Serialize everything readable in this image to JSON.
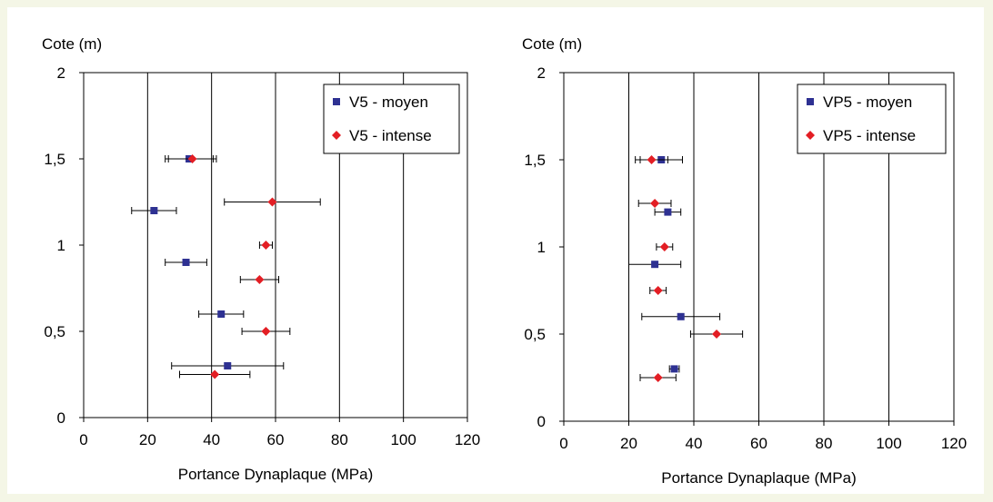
{
  "colors": {
    "moyen": "#2e3192",
    "intense": "#e31e24",
    "background": "#f4f6e6"
  },
  "chart_data": [
    {
      "type": "scatter",
      "title": "",
      "ylabel": "Cote (m)",
      "xlabel": "Portance Dynaplaque (MPa)",
      "xlim": [
        0,
        120
      ],
      "ylim": [
        0,
        2
      ],
      "xticks": [
        "0",
        "20",
        "40",
        "60",
        "80",
        "100",
        "120"
      ],
      "yticks": [
        "0",
        "0,5",
        "1",
        "1,5",
        "2"
      ],
      "grid": "vertical",
      "legend_position": "top-right",
      "series": [
        {
          "name": "V5 - moyen",
          "marker": "square",
          "color": "#2e3192",
          "points": [
            {
              "x": 33,
              "y": 1.5,
              "err": 7.5
            },
            {
              "x": 22,
              "y": 1.2,
              "err": 7
            },
            {
              "x": 32,
              "y": 0.9,
              "err": 6.5
            },
            {
              "x": 43,
              "y": 0.6,
              "err": 7
            },
            {
              "x": 45,
              "y": 0.3,
              "err": 17.5
            }
          ]
        },
        {
          "name": "V5 - intense",
          "marker": "diamond",
          "color": "#e31e24",
          "points": [
            {
              "x": 34,
              "y": 1.5,
              "err": 7.5
            },
            {
              "x": 59,
              "y": 1.25,
              "err": 15
            },
            {
              "x": 57,
              "y": 1.0,
              "err": 2
            },
            {
              "x": 55,
              "y": 0.8,
              "err": 6
            },
            {
              "x": 57,
              "y": 0.5,
              "err": 7.5
            },
            {
              "x": 41,
              "y": 0.25,
              "err": 11
            }
          ]
        }
      ]
    },
    {
      "type": "scatter",
      "title": "",
      "ylabel": "Cote (m)",
      "xlabel": "Portance Dynaplaque (MPa)",
      "xlim": [
        0,
        120
      ],
      "ylim": [
        0,
        2
      ],
      "xticks": [
        "0",
        "20",
        "40",
        "60",
        "80",
        "100",
        "120"
      ],
      "yticks": [
        "0",
        "0,5",
        "1",
        "1,5",
        "2"
      ],
      "grid": "vertical",
      "legend_position": "top-right",
      "series": [
        {
          "name": "VP5 - moyen",
          "marker": "square",
          "color": "#2e3192",
          "points": [
            {
              "x": 30,
              "y": 1.5,
              "err": 6.5
            },
            {
              "x": 32,
              "y": 1.2,
              "err": 4
            },
            {
              "x": 28,
              "y": 0.9,
              "err": 8
            },
            {
              "x": 36,
              "y": 0.6,
              "err": 12
            },
            {
              "x": 34,
              "y": 0.3,
              "err": 1.5
            }
          ]
        },
        {
          "name": "VP5 - intense",
          "marker": "diamond",
          "color": "#e31e24",
          "points": [
            {
              "x": 27,
              "y": 1.5,
              "err": 5
            },
            {
              "x": 28,
              "y": 1.25,
              "err": 5
            },
            {
              "x": 31,
              "y": 1.0,
              "err": 2.5
            },
            {
              "x": 29,
              "y": 0.75,
              "err": 2.5
            },
            {
              "x": 47,
              "y": 0.5,
              "err": 8
            },
            {
              "x": 29,
              "y": 0.25,
              "err": 5.5
            }
          ]
        }
      ]
    }
  ]
}
